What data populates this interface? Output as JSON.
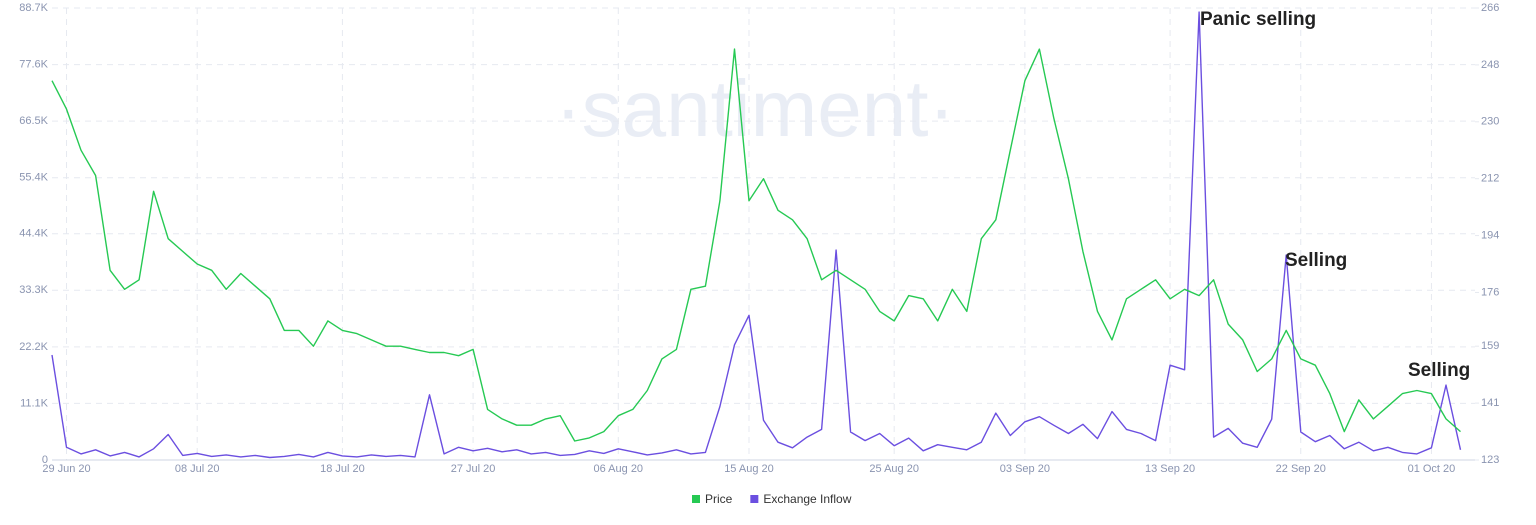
{
  "chart_data": {
    "type": "line",
    "watermark": "·santiment·",
    "x": [
      "2020-06-28",
      "2020-06-29",
      "2020-06-30",
      "2020-07-01",
      "2020-07-02",
      "2020-07-03",
      "2020-07-04",
      "2020-07-05",
      "2020-07-06",
      "2020-07-07",
      "2020-07-08",
      "2020-07-09",
      "2020-07-10",
      "2020-07-11",
      "2020-07-12",
      "2020-07-13",
      "2020-07-14",
      "2020-07-15",
      "2020-07-16",
      "2020-07-17",
      "2020-07-18",
      "2020-07-19",
      "2020-07-20",
      "2020-07-21",
      "2020-07-22",
      "2020-07-23",
      "2020-07-24",
      "2020-07-25",
      "2020-07-26",
      "2020-07-27",
      "2020-07-28",
      "2020-07-29",
      "2020-07-30",
      "2020-07-31",
      "2020-08-01",
      "2020-08-02",
      "2020-08-03",
      "2020-08-04",
      "2020-08-05",
      "2020-08-06",
      "2020-08-07",
      "2020-08-08",
      "2020-08-09",
      "2020-08-10",
      "2020-08-11",
      "2020-08-12",
      "2020-08-13",
      "2020-08-14",
      "2020-08-15",
      "2020-08-16",
      "2020-08-17",
      "2020-08-18",
      "2020-08-19",
      "2020-08-20",
      "2020-08-21",
      "2020-08-22",
      "2020-08-23",
      "2020-08-24",
      "2020-08-25",
      "2020-08-26",
      "2020-08-27",
      "2020-08-28",
      "2020-08-29",
      "2020-08-30",
      "2020-08-31",
      "2020-09-01",
      "2020-09-02",
      "2020-09-03",
      "2020-09-04",
      "2020-09-05",
      "2020-09-06",
      "2020-09-07",
      "2020-09-08",
      "2020-09-09",
      "2020-09-10",
      "2020-09-11",
      "2020-09-12",
      "2020-09-13",
      "2020-09-14",
      "2020-09-15",
      "2020-09-16",
      "2020-09-17",
      "2020-09-18",
      "2020-09-19",
      "2020-09-20",
      "2020-09-21",
      "2020-09-22",
      "2020-09-23",
      "2020-09-24",
      "2020-09-25",
      "2020-09-26",
      "2020-09-27",
      "2020-09-28",
      "2020-09-29",
      "2020-09-30",
      "2020-10-01",
      "2020-10-02",
      "2020-10-03"
    ],
    "series": [
      {
        "name": "Price",
        "color": "#26c953",
        "axis": "y2",
        "values": [
          243,
          234,
          221,
          213,
          183,
          177,
          180,
          208,
          193,
          189,
          185,
          183,
          177,
          182,
          178,
          174,
          164,
          164,
          159,
          167,
          164,
          163,
          161,
          159,
          159,
          158,
          157,
          157,
          156,
          158,
          139,
          136,
          134,
          134,
          136,
          137,
          129,
          130,
          132,
          137,
          139,
          145,
          155,
          158,
          177,
          178,
          205,
          253,
          205,
          212,
          202,
          199,
          193,
          180,
          183,
          180,
          177,
          170,
          167,
          175,
          174,
          167,
          177,
          170,
          193,
          199,
          221,
          243,
          253,
          231,
          212,
          189,
          170,
          161,
          174,
          177,
          180,
          174,
          177,
          175,
          180,
          166,
          161,
          151,
          155,
          164,
          155,
          153,
          144,
          132,
          142,
          136,
          140,
          144,
          145,
          144,
          136,
          132
        ]
      },
      {
        "name": "Exchange Inflow",
        "color": "#6b4fe0",
        "axis": "y",
        "values": [
          20600,
          2500,
          1200,
          2000,
          800,
          1500,
          600,
          2200,
          5000,
          900,
          1300,
          700,
          1000,
          600,
          900,
          500,
          700,
          1100,
          600,
          1500,
          800,
          600,
          1000,
          700,
          900,
          600,
          12800,
          1200,
          2500,
          1800,
          2300,
          1600,
          2000,
          1200,
          1500,
          900,
          1100,
          1800,
          1300,
          2200,
          1600,
          1000,
          1400,
          2000,
          1200,
          1500,
          10500,
          22600,
          28400,
          7800,
          3500,
          2400,
          4500,
          6000,
          41200,
          5500,
          3800,
          5200,
          2800,
          4300,
          1800,
          3000,
          2500,
          2000,
          3500,
          9200,
          4800,
          7500,
          8500,
          6800,
          5200,
          7000,
          4200,
          9500,
          6000,
          5200,
          3800,
          18600,
          17700,
          87900,
          4500,
          6200,
          3300,
          2500,
          8000,
          40200,
          5500,
          3600,
          4800,
          2200,
          3500,
          1800,
          2500,
          1500,
          1200,
          2400,
          14700,
          2000
        ]
      }
    ],
    "xlim": [
      "2020-06-28",
      "2020-10-04"
    ],
    "xticks": [
      {
        "value": "2020-06-29",
        "label": "29 Jun 20"
      },
      {
        "value": "2020-07-08",
        "label": "08 Jul 20"
      },
      {
        "value": "2020-07-18",
        "label": "18 Jul 20"
      },
      {
        "value": "2020-07-27",
        "label": "27 Jul 20"
      },
      {
        "value": "2020-08-06",
        "label": "06 Aug 20"
      },
      {
        "value": "2020-08-15",
        "label": "15 Aug 20"
      },
      {
        "value": "2020-08-25",
        "label": "25 Aug 20"
      },
      {
        "value": "2020-09-03",
        "label": "03 Sep 20"
      },
      {
        "value": "2020-09-13",
        "label": "13 Sep 20"
      },
      {
        "value": "2020-09-22",
        "label": "22 Sep 20"
      },
      {
        "value": "2020-10-01",
        "label": "01 Oct 20"
      }
    ],
    "ylim": [
      0,
      88700
    ],
    "yticks": [
      0,
      {
        "value": 11100,
        "label": "11.1K"
      },
      {
        "value": 22200,
        "label": "22.2K"
      },
      {
        "value": 33300,
        "label": "33.3K"
      },
      {
        "value": 44400,
        "label": "44.4K"
      },
      {
        "value": 55400,
        "label": "55.4K"
      },
      {
        "value": 66500,
        "label": "66.5K"
      },
      {
        "value": 77600,
        "label": "77.6K"
      },
      {
        "value": 88700,
        "label": "88.7K"
      }
    ],
    "y2lim": [
      123,
      266
    ],
    "y2ticks": [
      123,
      141,
      159,
      176,
      194,
      212,
      230,
      248,
      266
    ],
    "grid": true,
    "legend": "bottom",
    "annotations": [
      "Panic selling",
      "Selling",
      "Selling"
    ]
  }
}
